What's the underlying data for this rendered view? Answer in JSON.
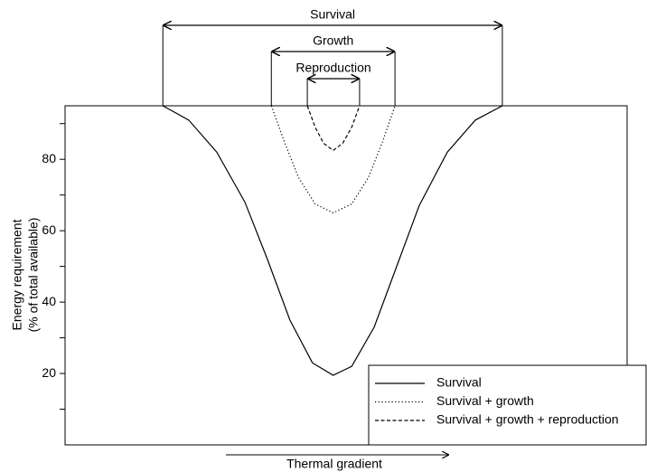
{
  "chart_data": {
    "type": "line",
    "ylabel": [
      "Energy requirement",
      "(% of total available)"
    ],
    "xlabel": "Thermal gradient",
    "xlim": [
      0,
      100
    ],
    "ylim": [
      0,
      95
    ],
    "yticks": [
      20,
      40,
      60,
      80
    ],
    "yminor_ticks": [
      10,
      30,
      50,
      70,
      90
    ],
    "legend": "lower right",
    "series": [
      {
        "name": "Survival",
        "bracket": "Survival",
        "color": "#000000",
        "dash": "solid",
        "x": [
          17.4,
          22,
          27,
          32,
          36,
          40,
          44,
          47.7,
          51,
          55,
          59,
          63,
          68,
          73,
          77.8
        ],
        "values": [
          95,
          91,
          82,
          68,
          52,
          35,
          23,
          19.5,
          22,
          33,
          50,
          67,
          82,
          91,
          95
        ]
      },
      {
        "name": "Survival + growth",
        "bracket": "Growth",
        "color": "#000000",
        "dash": "dotted",
        "x": [
          36.7,
          39,
          41.5,
          44.5,
          47.7,
          51,
          54,
          56.5,
          58.7
        ],
        "values": [
          95,
          85,
          75,
          67.5,
          65,
          67.5,
          75,
          85,
          95
        ]
      },
      {
        "name": "Survival + growth + reproduction",
        "bracket": "Reproduction",
        "color": "#000000",
        "dash": "dashed",
        "x": [
          43.1,
          44.5,
          46,
          47.7,
          49.4,
          51,
          52.4
        ],
        "values": [
          95,
          89,
          84.5,
          82.5,
          84.5,
          89,
          95
        ]
      }
    ]
  }
}
